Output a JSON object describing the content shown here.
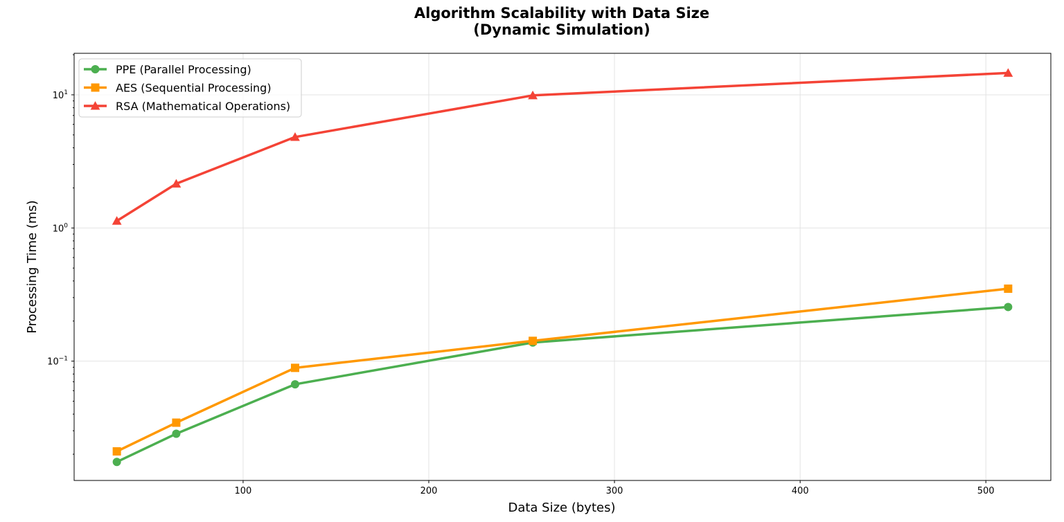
{
  "chart_data": {
    "type": "line",
    "title": "Algorithm Scalability with Data Size",
    "subtitle": "(Dynamic Simulation)",
    "xlabel": "Data Size (bytes)",
    "ylabel": "Processing Time (ms)",
    "xlim": [
      9,
      535
    ],
    "ylim": [
      0.0127,
      20.5
    ],
    "yscale": "log",
    "grid": true,
    "legend_position": "top-left",
    "x_ticks": [
      100,
      200,
      300,
      400,
      500
    ],
    "y_ticks": [
      {
        "value": 0.1,
        "base": "10",
        "exp": "−1"
      },
      {
        "value": 1,
        "base": "10",
        "exp": "0"
      },
      {
        "value": 10,
        "base": "10",
        "exp": "1"
      }
    ],
    "x": [
      32,
      64,
      128,
      256,
      512
    ],
    "series": [
      {
        "name": "PPE (Parallel Processing)",
        "color": "#4caf50",
        "marker": "circle",
        "values": [
          0.0175,
          0.0285,
          0.067,
          0.138,
          0.255
        ]
      },
      {
        "name": "AES (Sequential Processing)",
        "color": "#ff9800",
        "marker": "square",
        "values": [
          0.021,
          0.0345,
          0.089,
          0.142,
          0.35
        ]
      },
      {
        "name": "RSA (Mathematical Operations)",
        "color": "#f44336",
        "marker": "triangle",
        "values": [
          1.13,
          2.15,
          4.82,
          9.9,
          14.6
        ]
      }
    ]
  }
}
